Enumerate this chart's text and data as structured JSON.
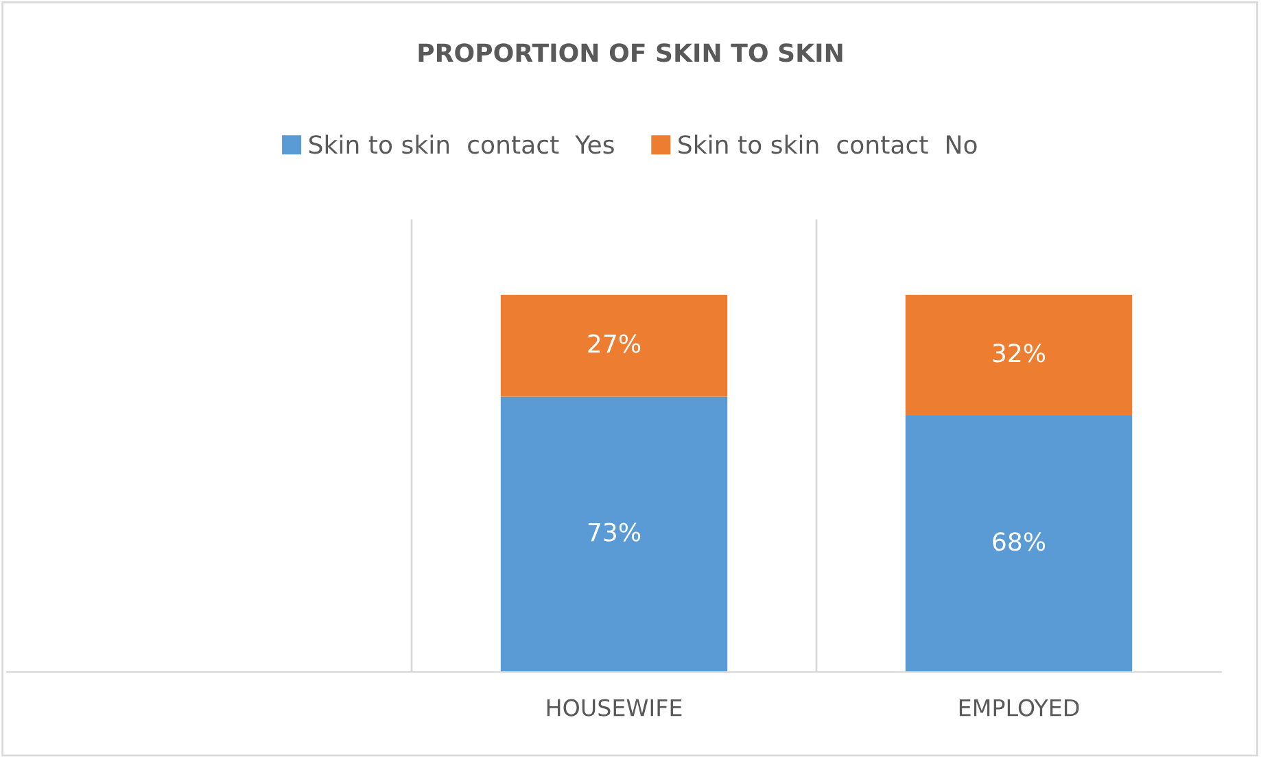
{
  "chart_data": {
    "type": "bar",
    "title": "PROPORTION OF SKIN TO SKIN",
    "stacked": true,
    "categories": [
      null,
      "HOUSEWIFE",
      "EMPLOYED"
    ],
    "series": [
      {
        "name": "Skin to skin  contact  Yes",
        "color": "#5b9bd5",
        "values": [
          null,
          73,
          68
        ],
        "value_labels": [
          null,
          "73%",
          "68%"
        ]
      },
      {
        "name": "Skin to skin  contact  No",
        "color": "#ed7d31",
        "values": [
          null,
          27,
          32
        ],
        "value_labels": [
          null,
          "27%",
          "32%"
        ]
      }
    ],
    "ylim": [
      0,
      120
    ],
    "tick_labels": "x",
    "grid": "x",
    "legend": "top"
  }
}
